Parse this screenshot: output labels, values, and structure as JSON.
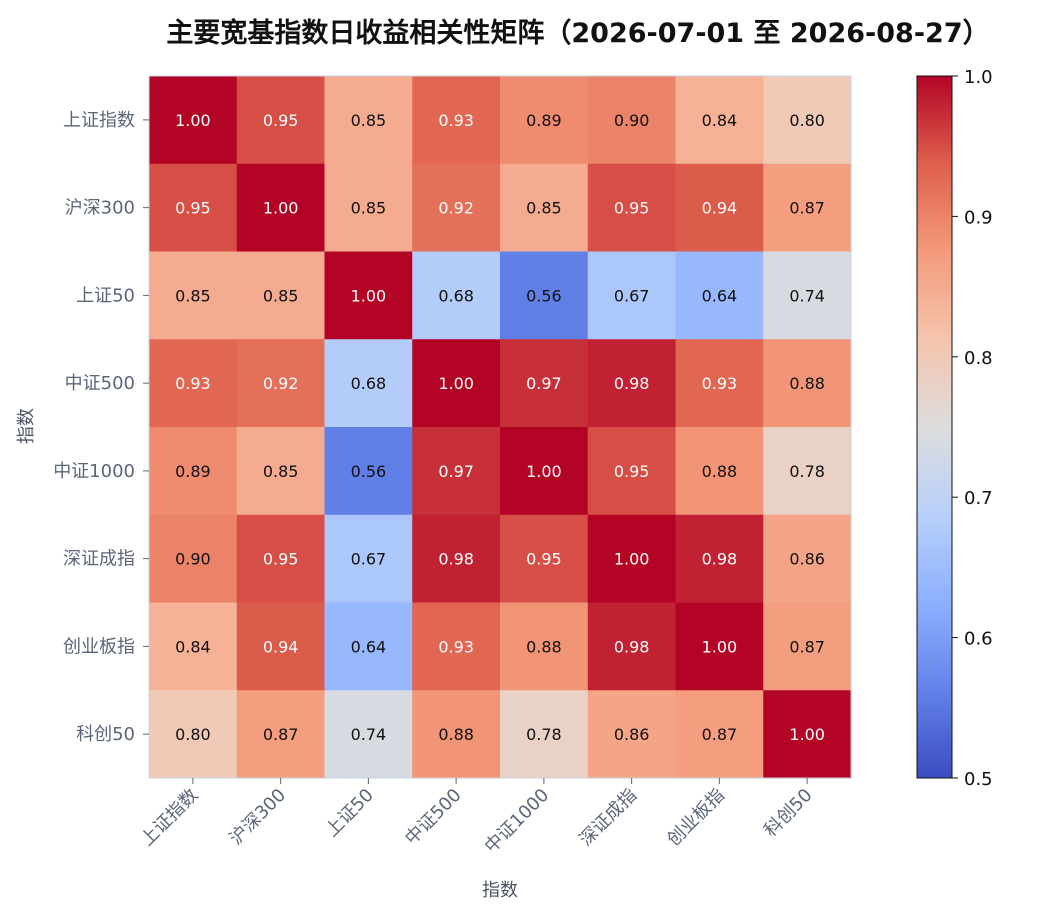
{
  "chart_data": {
    "type": "heatmap",
    "title": "主要宽基指数日收益相关性矩阵（2026-07-01 至 2026-08-27）",
    "xlabel": "指数",
    "ylabel": "指数",
    "row_labels": [
      "上证指数",
      "沪深300",
      "上证50",
      "中证500",
      "中证1000",
      "深证成指",
      "创业板指",
      "科创50"
    ],
    "col_labels": [
      "上证指数",
      "沪深300",
      "上证50",
      "中证500",
      "中证1000",
      "深证成指",
      "创业板指",
      "科创50"
    ],
    "values": [
      [
        1.0,
        0.95,
        0.85,
        0.93,
        0.89,
        0.9,
        0.84,
        0.8
      ],
      [
        0.95,
        1.0,
        0.85,
        0.92,
        0.85,
        0.95,
        0.94,
        0.87
      ],
      [
        0.85,
        0.85,
        1.0,
        0.68,
        0.56,
        0.67,
        0.64,
        0.74
      ],
      [
        0.93,
        0.92,
        0.68,
        1.0,
        0.97,
        0.98,
        0.93,
        0.88
      ],
      [
        0.89,
        0.85,
        0.56,
        0.97,
        1.0,
        0.95,
        0.88,
        0.78
      ],
      [
        0.9,
        0.95,
        0.67,
        0.98,
        0.95,
        1.0,
        0.98,
        0.86
      ],
      [
        0.84,
        0.94,
        0.64,
        0.93,
        0.88,
        0.98,
        1.0,
        0.87
      ],
      [
        0.8,
        0.87,
        0.74,
        0.88,
        0.78,
        0.86,
        0.87,
        1.0
      ]
    ],
    "value_format": "2 decimals",
    "colormap": "coolwarm",
    "color_range": [
      0.5,
      1.0
    ],
    "colorbar_ticks": [
      "0.5",
      "0.6",
      "0.7",
      "0.8",
      "0.9",
      "1.0"
    ],
    "colorbar_position": "right",
    "grid": false
  }
}
